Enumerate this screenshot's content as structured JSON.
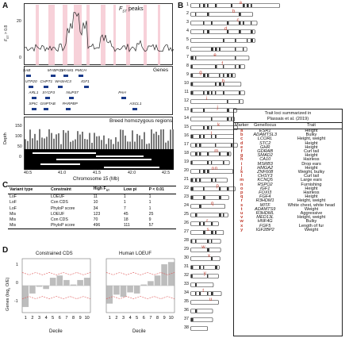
{
  "panel_labels": [
    "A",
    "B",
    "C",
    "D"
  ],
  "panelA": {
    "fst_title": "F",
    "fst_title_sub": "ST",
    "fst_title_rest": " peaks",
    "fst_ylabel": "F",
    "fst_ylabel_sub": "ST",
    "fst_ylabel_rest": " > 0.8",
    "fst_y_ticks": [
      "20",
      "0"
    ],
    "genes_title": "Genes",
    "genes": [
      {
        "name": "SAB",
        "x": 40.52,
        "row": 0
      },
      {
        "name": "MYBPC1",
        "x": 40.85,
        "row": 0
      },
      {
        "name": "DRAM1",
        "x": 41.02,
        "row": 0
      },
      {
        "name": "PMCH",
        "x": 41.22,
        "row": 0
      },
      {
        "name": "UTP20",
        "x": 40.55,
        "row": 1
      },
      {
        "name": "CHPT1",
        "x": 40.75,
        "row": 1
      },
      {
        "name": "WASHC3",
        "x": 40.95,
        "row": 1
      },
      {
        "name": "IGF1",
        "x": 41.3,
        "row": 1
      },
      {
        "name": "ARL1",
        "x": 40.6,
        "row": 2
      },
      {
        "name": "SYCP3",
        "x": 40.78,
        "row": 2
      },
      {
        "name": "NUP37",
        "x": 41.1,
        "row": 2
      },
      {
        "name": "PAH",
        "x": 41.8,
        "row": 2
      },
      {
        "name": "SPIC",
        "x": 40.6,
        "row": 3
      },
      {
        "name": "GNPTAB",
        "x": 40.75,
        "row": 3
      },
      {
        "name": "PARPBP",
        "x": 41.05,
        "row": 3
      },
      {
        "name": "ASCL1",
        "x": 41.95,
        "row": 3
      }
    ],
    "homo_title": "Breed homozygous regions",
    "depth_label": "Depth",
    "depth_ticks": [
      "150",
      "100",
      "50",
      "0"
    ],
    "xaxis_label": "Chromosome 15 (Mb)",
    "xaxis_ticks": [
      "40.5",
      "41.0",
      "41.5",
      "42.0",
      "42.5"
    ]
  },
  "panelB": {
    "chromosomes": [
      "1",
      "2",
      "3",
      "4",
      "5",
      "6",
      "7",
      "8",
      "9",
      "10",
      "11",
      "12",
      "13",
      "14",
      "15",
      "16",
      "17",
      "18",
      "19",
      "20",
      "21",
      "22",
      "23",
      "24",
      "25",
      "26",
      "27",
      "28",
      "29",
      "30",
      "31",
      "32",
      "33",
      "34",
      "35",
      "36",
      "37",
      "38"
    ],
    "chrom_markers": [
      {
        "chr": "1",
        "marker": "a"
      },
      {
        "chr": "2",
        "marker": "b"
      },
      {
        "chr": "3",
        "marker": "c"
      },
      {
        "chr": "4",
        "marker": "d"
      },
      {
        "chr": "7",
        "marker": "e"
      },
      {
        "chr": "8",
        "marker": "f"
      },
      {
        "chr": "9",
        "marker": "g"
      },
      {
        "chr": "10",
        "marker": "h"
      },
      {
        "chr": "12",
        "marker": "i"
      },
      {
        "chr": "13",
        "marker": "j"
      },
      {
        "chr": "15",
        "marker": "k"
      },
      {
        "chr": "16",
        "marker": "l"
      },
      {
        "chr": "18",
        "marker": "m"
      },
      {
        "chr": "20",
        "marker": "n"
      },
      {
        "chr": "20",
        "marker": "o"
      },
      {
        "chr": "22",
        "marker": "p"
      },
      {
        "chr": "24",
        "marker": "q"
      },
      {
        "chr": "26",
        "marker": "r"
      },
      {
        "chr": "27",
        "marker": "s"
      },
      {
        "chr": "29",
        "marker": "w"
      },
      {
        "chr": "30",
        "marker": "x"
      },
      {
        "chr": "32",
        "marker": "y"
      },
      {
        "chr": "34",
        "marker": "t"
      },
      {
        "chr": "35",
        "marker": "u"
      }
    ],
    "trait_table": {
      "title_line1": "Trait loci summarized in",
      "title_line2": "Plassais et al. (2019)",
      "headers": [
        "Marker",
        "Gene/locus",
        "Trait"
      ],
      "rows": [
        [
          "a",
          "ESR1",
          "Height"
        ],
        [
          "b",
          "ADAMTSL3",
          "Bulky"
        ],
        [
          "c",
          "LCORL",
          "Height, weight"
        ],
        [
          "d",
          "STC2",
          "Height"
        ],
        [
          "e",
          "GHR",
          "Height"
        ],
        [
          "f",
          "GDRAB",
          "Curl tail"
        ],
        [
          "g",
          "SMAD2",
          "Height"
        ],
        [
          "h",
          "CA10",
          "Hairless"
        ],
        [
          "i",
          "MSRB3",
          "Drop ears"
        ],
        [
          "j",
          "HMGA2",
          "Height"
        ],
        [
          "k",
          "ZNF608",
          "Weight, bulky"
        ],
        [
          "l",
          "CHSY3",
          "Curl tail"
        ],
        [
          "m",
          "KCNQ5",
          "Large ears"
        ],
        [
          "n",
          "RSPO2",
          "Furnishing"
        ],
        [
          "o",
          "IGF1",
          "Height"
        ],
        [
          "p",
          "FOXI3",
          "Hairless"
        ],
        [
          "q",
          "FGF4",
          "Height"
        ],
        [
          "r",
          "R3HDM1",
          "Height, weight"
        ],
        [
          "s",
          "MITF",
          "White chest, white head"
        ],
        [
          "t",
          "ADAMTS9",
          "Weight"
        ],
        [
          "u",
          "R3HDML",
          "Aggressive"
        ],
        [
          "v",
          "MED13L",
          "Height, weight"
        ],
        [
          "w",
          "HNF4G",
          "Bulky"
        ],
        [
          "x",
          "FGF5",
          "Length of fur"
        ],
        [
          "y",
          "IGF2BP2",
          "Weight"
        ]
      ]
    }
  },
  "panelC": {
    "headers": [
      "Variant type",
      "Constraint",
      "High F",
      "Low pi",
      "P < 0.01"
    ],
    "header_fst_sub": "ST",
    "rows": [
      [
        "LoF",
        "LOEUF",
        "11",
        "1",
        "1"
      ],
      [
        "LoF",
        "Con CDS",
        "10",
        "1",
        "1"
      ],
      [
        "LoF",
        "PhyloP score",
        "34",
        "7",
        "1"
      ],
      [
        "Mis",
        "LOEUF",
        "123",
        "45",
        "25"
      ],
      [
        "Mis",
        "Con CDS",
        "70",
        "18",
        "9"
      ],
      [
        "Mis",
        "PhyloP score",
        "496",
        "111",
        "57"
      ]
    ]
  },
  "panelD": {
    "ylabel": "Genes (log",
    "ylabel_sub": "2",
    "ylabel_rest": " O/E)",
    "y_ticks": [
      "1",
      "0",
      "-1"
    ],
    "chart_data": [
      {
        "type": "bar",
        "title": "Constrained CDS",
        "xlabel": "Decile",
        "ylabel": "Genes (log2 O/E)",
        "categories": [
          "1",
          "2",
          "3",
          "4",
          "5",
          "6",
          "7",
          "8",
          "9",
          "10"
        ],
        "values": [
          -0.95,
          -0.35,
          -0.05,
          -0.15,
          0.35,
          0.45,
          0.25,
          0.05,
          0.25,
          0.35
        ],
        "ylim": [
          -1.2,
          1.2
        ]
      },
      {
        "type": "bar",
        "title": "Human LOEUF",
        "xlabel": "Decile",
        "ylabel": "Genes (log2 O/E)",
        "categories": [
          "1",
          "2",
          "3",
          "4",
          "5",
          "6",
          "7",
          "8",
          "9",
          "10"
        ],
        "values": [
          -0.8,
          -0.4,
          -0.5,
          -0.3,
          -0.35,
          0.05,
          0.2,
          0.45,
          0.95,
          1.05
        ],
        "ylim": [
          -1.2,
          1.2
        ]
      }
    ]
  }
}
